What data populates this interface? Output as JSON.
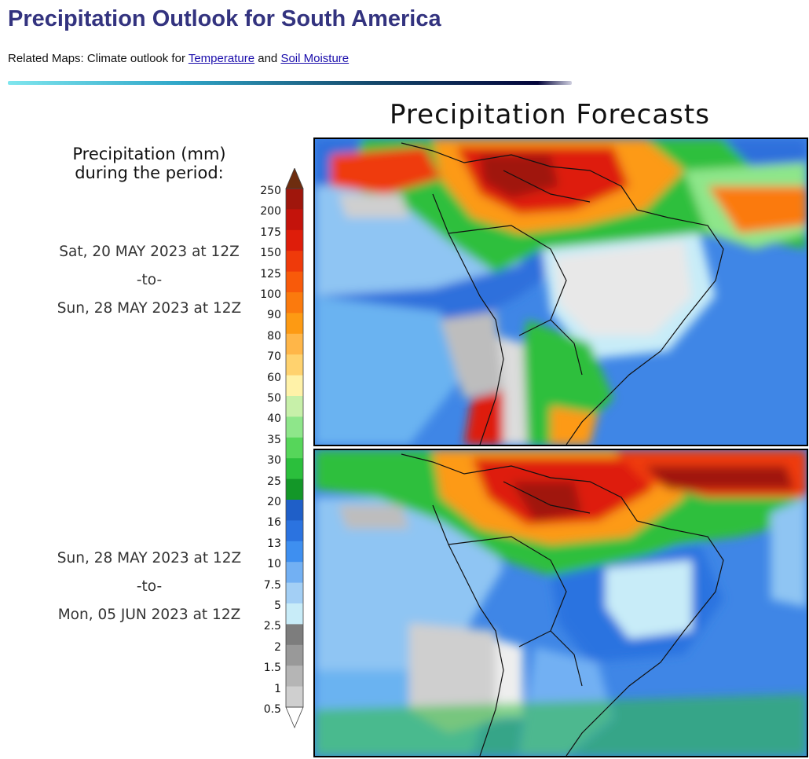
{
  "header": {
    "title": "Precipitation Outlook for South America",
    "related_prefix": "Related Maps: Climate outlook for ",
    "link_temperature": "Temperature",
    "related_and": " and ",
    "link_soil": "Soil Moisture"
  },
  "figure": {
    "title": "Precipitation Forecasts",
    "legend_title_line1": "Precipitation (mm)",
    "legend_title_line2": "during the period:",
    "legend_ticks": [
      "250",
      "200",
      "175",
      "150",
      "125",
      "100",
      "90",
      "80",
      "70",
      "60",
      "50",
      "40",
      "35",
      "30",
      "25",
      "20",
      "16",
      "13",
      "10",
      "7.5",
      "5",
      "2.5",
      "2",
      "1.5",
      "1",
      "0.5"
    ],
    "legend_colors": [
      "#6e2d0f",
      "#a0160c",
      "#c4130b",
      "#de1d0a",
      "#ef3a0a",
      "#f85a0a",
      "#fb7a0d",
      "#fd9a13",
      "#ffb648",
      "#ffd26e",
      "#fff2a8",
      "#c7f0a9",
      "#8ee68a",
      "#56d65a",
      "#2bbf3c",
      "#139728",
      "#1f5fc8",
      "#2b73e0",
      "#3e8ff0",
      "#72b0f3",
      "#a3cff5",
      "#c8ecf8",
      "#7d7d7d",
      "#999999",
      "#b5b5b5",
      "#cfcfcf",
      "#ffffff"
    ],
    "panels": [
      {
        "from": "Sat, 20 MAY 2023 at 12Z",
        "sep": "-to-",
        "to": "Sun, 28 MAY 2023 at 12Z",
        "map_label": "Week 1 precipitation forecast map"
      },
      {
        "from": "Sun, 28 MAY 2023 at 12Z",
        "sep": "-to-",
        "to": "Mon, 05 JUN 2023 at 12Z",
        "map_label": "Week 2 precipitation forecast map"
      }
    ]
  }
}
